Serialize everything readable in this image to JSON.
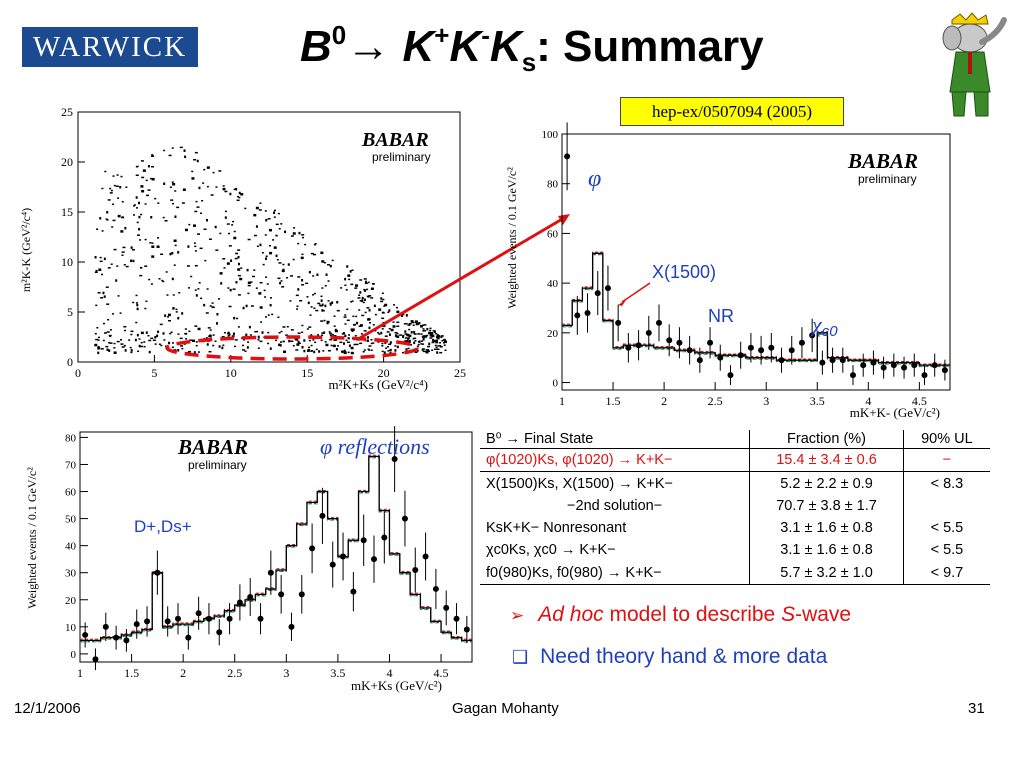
{
  "header": {
    "logo_text": "WARWICK",
    "title_b": "B",
    "title_b_sup": "0",
    "title_arrow": "→",
    "title_k1": "K",
    "title_k1_sup": "+",
    "title_k2": "K",
    "title_k2_sup": "-",
    "title_k3": "K",
    "title_k3_sub": "s",
    "title_rest": ": Summary",
    "reference": "hep-ex/0507094 (2005)"
  },
  "babar": {
    "logo": "BABAR",
    "sub": "preliminary"
  },
  "annotations": {
    "phi": "φ",
    "x1500": "X(1500)",
    "nr": "NR",
    "chi": "χ",
    "chi_sub": "c0",
    "reflections": "φ reflections",
    "ds": "D+,Ds+"
  },
  "chart_data": [
    {
      "type": "scatter",
      "name": "dalitz",
      "xlabel": "m²K+Ks (GeV²/c⁴)",
      "ylabel": "m²K-K (GeV²/c⁴)",
      "xlim": [
        0,
        25
      ],
      "ylim": [
        0,
        25
      ],
      "xticks": [
        "0",
        "5",
        "10",
        "15",
        "20",
        "25"
      ],
      "yticks": [
        "0",
        "5",
        "10",
        "15",
        "20",
        "25"
      ]
    },
    {
      "type": "line",
      "name": "mkk_projection",
      "xlabel": "mK+K- (GeV/c²)",
      "ylabel": "Weighted events / 0.1 GeV/c²",
      "xlim": [
        1,
        4.8
      ],
      "ylim": [
        -3,
        100
      ],
      "xticks": [
        "1",
        "1.5",
        "2",
        "2.5",
        "3",
        "3.5",
        "4",
        "4.5"
      ],
      "yticks": [
        "0",
        "20",
        "40",
        "60",
        "80",
        "100"
      ],
      "x": [
        1.05,
        1.15,
        1.25,
        1.35,
        1.45,
        1.55,
        1.65,
        1.75,
        1.85,
        1.95,
        2.05,
        2.15,
        2.25,
        2.35,
        2.45,
        2.55,
        2.65,
        2.75,
        2.85,
        2.95,
        3.05,
        3.15,
        3.25,
        3.35,
        3.45,
        3.55,
        3.65,
        3.75,
        3.85,
        3.95,
        4.05,
        4.15,
        4.25,
        4.35,
        4.45,
        4.55,
        4.65,
        4.75
      ],
      "data": [
        91,
        27,
        28,
        36,
        38,
        24,
        14,
        15,
        20,
        24,
        17,
        16,
        13,
        9,
        16,
        10,
        3,
        11,
        14,
        13,
        14,
        9,
        13,
        16,
        19,
        8,
        9,
        9,
        3,
        7,
        8,
        6,
        7,
        6,
        7,
        3,
        7,
        5
      ],
      "fit": [
        23,
        33,
        38,
        52,
        25,
        14,
        15,
        15,
        15,
        14,
        14,
        13,
        13,
        12,
        12,
        11,
        11,
        11,
        10,
        10,
        10,
        9,
        9,
        9,
        9,
        20,
        10,
        10,
        9,
        9,
        9,
        8,
        8,
        8,
        8,
        7,
        7,
        7
      ]
    },
    {
      "type": "line",
      "name": "mkks_projection",
      "xlabel": "mK+Ks (GeV/c²)",
      "ylabel": "Weighted events / 0.1 GeV/c²",
      "xlim": [
        1,
        4.8
      ],
      "ylim": [
        -3,
        82
      ],
      "xticks": [
        "1",
        "1.5",
        "2",
        "2.5",
        "3",
        "3.5",
        "4",
        "4.5"
      ],
      "yticks": [
        "0",
        "10",
        "20",
        "30",
        "40",
        "50",
        "60",
        "70",
        "80"
      ],
      "x": [
        1.05,
        1.15,
        1.25,
        1.35,
        1.45,
        1.55,
        1.65,
        1.75,
        1.85,
        1.95,
        2.05,
        2.15,
        2.25,
        2.35,
        2.45,
        2.55,
        2.65,
        2.75,
        2.85,
        2.95,
        3.05,
        3.15,
        3.25,
        3.35,
        3.45,
        3.55,
        3.65,
        3.75,
        3.85,
        3.95,
        4.05,
        4.15,
        4.25,
        4.35,
        4.45,
        4.55,
        4.65,
        4.75
      ],
      "data": [
        7,
        -2,
        10,
        6,
        5,
        11,
        12,
        30,
        12,
        13,
        6,
        15,
        13,
        8,
        13,
        19,
        21,
        13,
        30,
        22,
        10,
        22,
        39,
        51,
        33,
        36,
        23,
        42,
        35,
        43,
        72,
        50,
        31,
        36,
        24,
        17,
        13,
        9
      ],
      "fit": [
        5,
        5,
        6,
        6,
        7,
        8,
        9,
        30,
        10,
        11,
        11,
        12,
        13,
        14,
        16,
        18,
        20,
        22,
        24,
        31,
        40,
        48,
        56,
        60,
        50,
        36,
        42,
        60,
        73,
        53,
        37,
        30,
        22,
        17,
        12,
        8,
        6,
        5
      ]
    }
  ],
  "table": {
    "headers": [
      "B⁰ → Final State",
      "Fraction (%)",
      "90% UL"
    ],
    "rows": [
      {
        "state": "φ(1020)Ks, φ(1020) → K+K−",
        "fraction": "15.4 ± 3.4 ± 0.6",
        "ul": "−"
      },
      {
        "state": "X(1500)Ks, X(1500) → K+K−",
        "fraction": "5.2 ± 2.2 ± 0.9",
        "ul": "< 8.3"
      },
      {
        "state": "−2nd solution−",
        "fraction": "70.7 ± 3.8 ± 1.7",
        "ul": ""
      },
      {
        "state": "KsK+K− Nonresonant",
        "fraction": "3.1 ± 1.6 ± 0.8",
        "ul": "< 5.5"
      },
      {
        "state": "χc0Ks, χc0 → K+K−",
        "fraction": "3.1 ± 1.6 ± 0.8",
        "ul": "< 5.5"
      },
      {
        "state": "f0(980)Ks, f0(980) → K+K−",
        "fraction": "5.7 ± 3.2 ± 1.0",
        "ul": "< 9.7"
      }
    ]
  },
  "bullets": {
    "b1_icon": "➢",
    "b1_italic": "Ad hoc",
    "b1_mid": " model to describe ",
    "b1_s": "S",
    "b1_end": "-wave",
    "b2_icon": "❑",
    "b2_text": "Need theory hand & more data"
  },
  "footer": {
    "date": "12/1/2006",
    "author": "Gagan Mohanty",
    "page": "31"
  },
  "colors": {
    "logo_bg": "#1c4a91",
    "ref_bg": "#ffff00",
    "accent_red": "#e01010",
    "bullet_blue": "#1f3fbf",
    "fit_green": "#1a9a1a"
  }
}
